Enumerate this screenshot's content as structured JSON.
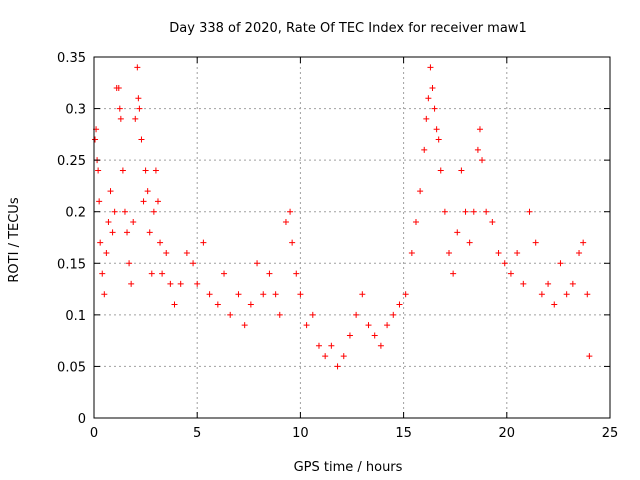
{
  "chart_data": {
    "type": "scatter",
    "title": "Day 338 of 2020, Rate Of TEC Index for receiver maw1",
    "xlabel": "GPS time / hours",
    "ylabel": "ROTI / TECUs",
    "xlim": [
      0,
      25
    ],
    "ylim": [
      0,
      0.35
    ],
    "xticks": [
      0,
      5,
      10,
      15,
      20,
      25
    ],
    "xtick_labels": [
      "0",
      "5",
      "10",
      "15",
      "20",
      "25"
    ],
    "yticks": [
      0,
      0.05,
      0.1,
      0.15,
      0.2,
      0.25,
      0.3,
      0.35
    ],
    "ytick_labels": [
      "0",
      "0.05",
      "0.1",
      "0.15",
      "0.2",
      "0.25",
      "0.3",
      "0.35"
    ],
    "grid": true,
    "marker": "plus",
    "color": "#ff0000",
    "series": [
      {
        "points": [
          [
            0.05,
            0.27
          ],
          [
            0.1,
            0.28
          ],
          [
            0.15,
            0.25
          ],
          [
            0.2,
            0.24
          ],
          [
            0.25,
            0.21
          ],
          [
            0.3,
            0.17
          ],
          [
            0.4,
            0.14
          ],
          [
            0.5,
            0.12
          ],
          [
            0.6,
            0.16
          ],
          [
            0.7,
            0.19
          ],
          [
            0.8,
            0.22
          ],
          [
            0.9,
            0.18
          ],
          [
            1.0,
            0.2
          ],
          [
            1.1,
            0.32
          ],
          [
            1.2,
            0.32
          ],
          [
            1.25,
            0.3
          ],
          [
            1.3,
            0.29
          ],
          [
            1.4,
            0.24
          ],
          [
            1.5,
            0.2
          ],
          [
            1.6,
            0.18
          ],
          [
            1.7,
            0.15
          ],
          [
            1.8,
            0.13
          ],
          [
            1.9,
            0.19
          ],
          [
            2.0,
            0.29
          ],
          [
            2.1,
            0.34
          ],
          [
            2.15,
            0.31
          ],
          [
            2.2,
            0.3
          ],
          [
            2.3,
            0.27
          ],
          [
            2.4,
            0.21
          ],
          [
            2.5,
            0.24
          ],
          [
            2.6,
            0.22
          ],
          [
            2.7,
            0.18
          ],
          [
            2.8,
            0.14
          ],
          [
            2.9,
            0.2
          ],
          [
            3.0,
            0.24
          ],
          [
            3.1,
            0.21
          ],
          [
            3.2,
            0.17
          ],
          [
            3.3,
            0.14
          ],
          [
            3.5,
            0.16
          ],
          [
            3.7,
            0.13
          ],
          [
            3.9,
            0.11
          ],
          [
            4.2,
            0.13
          ],
          [
            4.5,
            0.16
          ],
          [
            4.8,
            0.15
          ],
          [
            5.0,
            0.13
          ],
          [
            5.3,
            0.17
          ],
          [
            5.6,
            0.12
          ],
          [
            6.0,
            0.11
          ],
          [
            6.3,
            0.14
          ],
          [
            6.6,
            0.1
          ],
          [
            7.0,
            0.12
          ],
          [
            7.3,
            0.09
          ],
          [
            7.6,
            0.11
          ],
          [
            7.9,
            0.15
          ],
          [
            8.2,
            0.12
          ],
          [
            8.5,
            0.14
          ],
          [
            8.8,
            0.12
          ],
          [
            9.0,
            0.1
          ],
          [
            9.3,
            0.19
          ],
          [
            9.5,
            0.2
          ],
          [
            9.6,
            0.17
          ],
          [
            9.8,
            0.14
          ],
          [
            10.0,
            0.12
          ],
          [
            10.3,
            0.09
          ],
          [
            10.6,
            0.1
          ],
          [
            10.9,
            0.07
          ],
          [
            11.2,
            0.06
          ],
          [
            11.5,
            0.07
          ],
          [
            11.8,
            0.05
          ],
          [
            12.1,
            0.06
          ],
          [
            12.4,
            0.08
          ],
          [
            12.7,
            0.1
          ],
          [
            13.0,
            0.12
          ],
          [
            13.3,
            0.09
          ],
          [
            13.6,
            0.08
          ],
          [
            13.9,
            0.07
          ],
          [
            14.2,
            0.09
          ],
          [
            14.5,
            0.1
          ],
          [
            14.8,
            0.11
          ],
          [
            15.1,
            0.12
          ],
          [
            15.4,
            0.16
          ],
          [
            15.6,
            0.19
          ],
          [
            15.8,
            0.22
          ],
          [
            16.0,
            0.26
          ],
          [
            16.1,
            0.29
          ],
          [
            16.2,
            0.31
          ],
          [
            16.3,
            0.34
          ],
          [
            16.4,
            0.32
          ],
          [
            16.5,
            0.3
          ],
          [
            16.6,
            0.28
          ],
          [
            16.7,
            0.27
          ],
          [
            16.8,
            0.24
          ],
          [
            17.0,
            0.2
          ],
          [
            17.2,
            0.16
          ],
          [
            17.4,
            0.14
          ],
          [
            17.6,
            0.18
          ],
          [
            17.8,
            0.24
          ],
          [
            18.0,
            0.2
          ],
          [
            18.2,
            0.17
          ],
          [
            18.4,
            0.2
          ],
          [
            18.6,
            0.26
          ],
          [
            18.7,
            0.28
          ],
          [
            18.8,
            0.25
          ],
          [
            19.0,
            0.2
          ],
          [
            19.3,
            0.19
          ],
          [
            19.6,
            0.16
          ],
          [
            19.9,
            0.15
          ],
          [
            20.2,
            0.14
          ],
          [
            20.5,
            0.16
          ],
          [
            20.8,
            0.13
          ],
          [
            21.1,
            0.2
          ],
          [
            21.4,
            0.17
          ],
          [
            21.7,
            0.12
          ],
          [
            22.0,
            0.13
          ],
          [
            22.3,
            0.11
          ],
          [
            22.6,
            0.15
          ],
          [
            22.9,
            0.12
          ],
          [
            23.2,
            0.13
          ],
          [
            23.5,
            0.16
          ],
          [
            23.7,
            0.17
          ],
          [
            23.9,
            0.12
          ],
          [
            24.0,
            0.06
          ]
        ]
      }
    ]
  }
}
